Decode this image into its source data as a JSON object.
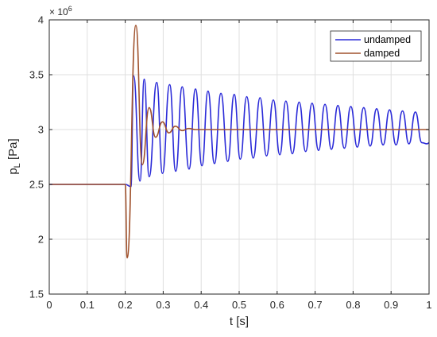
{
  "chart_data": {
    "type": "line",
    "title": "",
    "xlabel": "t [s]",
    "ylabel_main": "p",
    "ylabel_sub": "L",
    "ylabel_unit": " [Pa]",
    "y_exponent_base": "× 10",
    "y_exponent_power": "6",
    "xlim": [
      0,
      1
    ],
    "ylim": [
      1.5,
      4
    ],
    "xticks": [
      0,
      0.1,
      0.2,
      0.3,
      0.4,
      0.5,
      0.6,
      0.7,
      0.8,
      0.9,
      1
    ],
    "xtick_labels": [
      "0",
      "0.1",
      "0.2",
      "0.3",
      "0.4",
      "0.5",
      "0.6",
      "0.7",
      "0.8",
      "0.9",
      "1"
    ],
    "yticks": [
      1.5,
      2,
      2.5,
      3,
      3.5,
      4
    ],
    "ytick_labels": [
      "1.5",
      "2",
      "2.5",
      "3",
      "3.5",
      "4"
    ],
    "grid": true,
    "legend_position": "top-right",
    "series": [
      {
        "name": "undamped",
        "color": "#2b2bd8",
        "x": [
          0,
          0.2,
          0.215,
          0.222,
          0.239,
          0.25,
          0.263,
          0.283,
          0.298,
          0.317,
          0.333,
          0.35,
          0.368,
          0.385,
          0.402,
          0.418,
          0.435,
          0.452,
          0.47,
          0.487,
          0.503,
          0.52,
          0.537,
          0.555,
          0.572,
          0.59,
          0.607,
          0.623,
          0.64,
          0.658,
          0.675,
          0.692,
          0.709,
          0.726,
          0.743,
          0.76,
          0.777,
          0.794,
          0.811,
          0.828,
          0.845,
          0.862,
          0.879,
          0.896,
          0.913,
          0.93,
          0.947,
          0.964,
          0.981,
          0.995,
          1.0
        ],
        "y": [
          2.5,
          2.5,
          2.48,
          3.49,
          2.53,
          3.46,
          2.57,
          3.43,
          2.6,
          3.41,
          2.62,
          3.39,
          2.64,
          3.37,
          2.67,
          3.35,
          2.69,
          3.33,
          2.71,
          3.32,
          2.73,
          3.3,
          2.74,
          3.29,
          2.76,
          3.27,
          2.77,
          3.26,
          2.78,
          3.25,
          2.8,
          3.24,
          2.81,
          3.23,
          2.82,
          3.22,
          2.83,
          3.21,
          2.84,
          3.2,
          2.85,
          3.19,
          2.86,
          3.18,
          2.86,
          3.17,
          2.87,
          3.16,
          2.88,
          2.87,
          2.88
        ]
      },
      {
        "name": "damped",
        "color": "#a0522d",
        "x": [
          0,
          0.2,
          0.205,
          0.228,
          0.245,
          0.263,
          0.28,
          0.298,
          0.315,
          0.332,
          0.35,
          0.367,
          0.385,
          0.45,
          1.0
        ],
        "y": [
          2.5,
          2.5,
          1.83,
          3.95,
          2.68,
          3.2,
          2.93,
          3.07,
          2.97,
          3.03,
          2.99,
          3.01,
          3.0,
          3.0,
          3.0
        ]
      }
    ]
  }
}
